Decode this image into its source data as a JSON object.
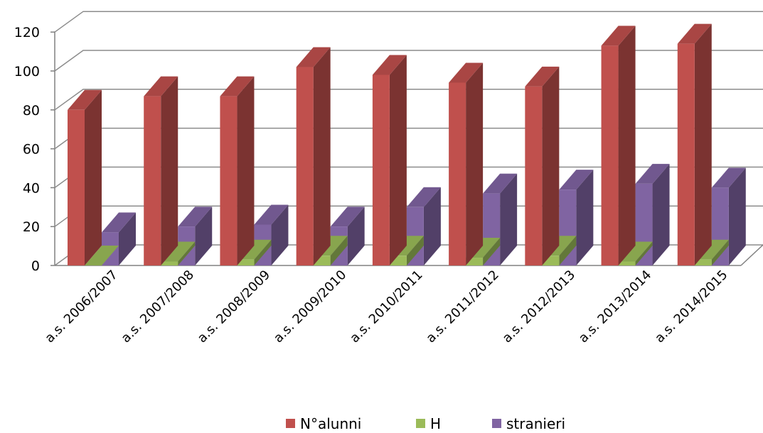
{
  "chart_data": {
    "type": "bar",
    "style": "3d-clustered-column",
    "categories": [
      "a.s. 2006/2007",
      "a.s. 2007/2008",
      "a.s. 2008/2009",
      "a.s. 2009/2010",
      "a.s. 2010/2011",
      "a.s. 2011/2012",
      "a.s. 2012/2013",
      "a.s. 2013/2014",
      "a.s. 2014/2015"
    ],
    "series": [
      {
        "name": "N°alunni",
        "color": "#c0504d",
        "values": [
          80,
          87,
          87,
          102,
          98,
          94,
          92,
          113,
          114
        ]
      },
      {
        "name": "H",
        "color": "#9bbb59",
        "values": [
          0,
          2,
          3,
          5,
          5,
          4,
          5,
          2,
          3
        ]
      },
      {
        "name": "stranieri",
        "color": "#8064a2",
        "values": [
          17,
          20,
          21,
          20,
          30,
          37,
          39,
          42,
          40
        ]
      }
    ],
    "ylim": [
      0,
      120
    ],
    "yticks": [
      0,
      20,
      40,
      60,
      80,
      100,
      120
    ],
    "grid": true,
    "legend_position": "bottom"
  }
}
